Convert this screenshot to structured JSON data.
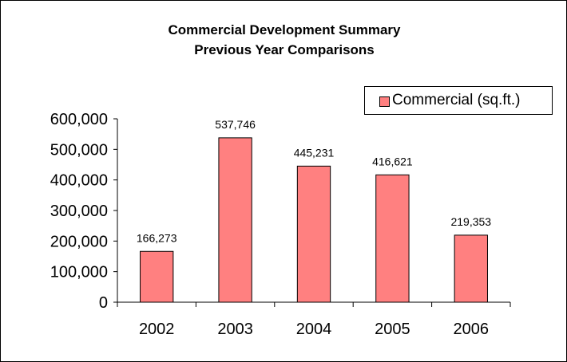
{
  "chart_data": {
    "type": "bar",
    "title_lines": [
      "Commercial Development Summary",
      "Previous Year Comparisons"
    ],
    "xlabel": "",
    "ylabel": "",
    "categories": [
      "2002",
      "2003",
      "2004",
      "2005",
      "2006"
    ],
    "series": [
      {
        "name": "Commercial (sq.ft.)",
        "values": [
          166273,
          537746,
          445231,
          416621,
          219353
        ],
        "value_labels": [
          "166,273",
          "537,746",
          "445,231",
          "416,621",
          "219,353"
        ],
        "color": "#ff8080"
      }
    ],
    "ylim": [
      0,
      600000
    ],
    "y_ticks": [
      0,
      100000,
      200000,
      300000,
      400000,
      500000,
      600000
    ],
    "y_tick_labels": [
      "0",
      "100,000",
      "200,000",
      "300,000",
      "400,000",
      "500,000",
      "600,000"
    ],
    "grid": false,
    "legend_position": "top-right"
  }
}
